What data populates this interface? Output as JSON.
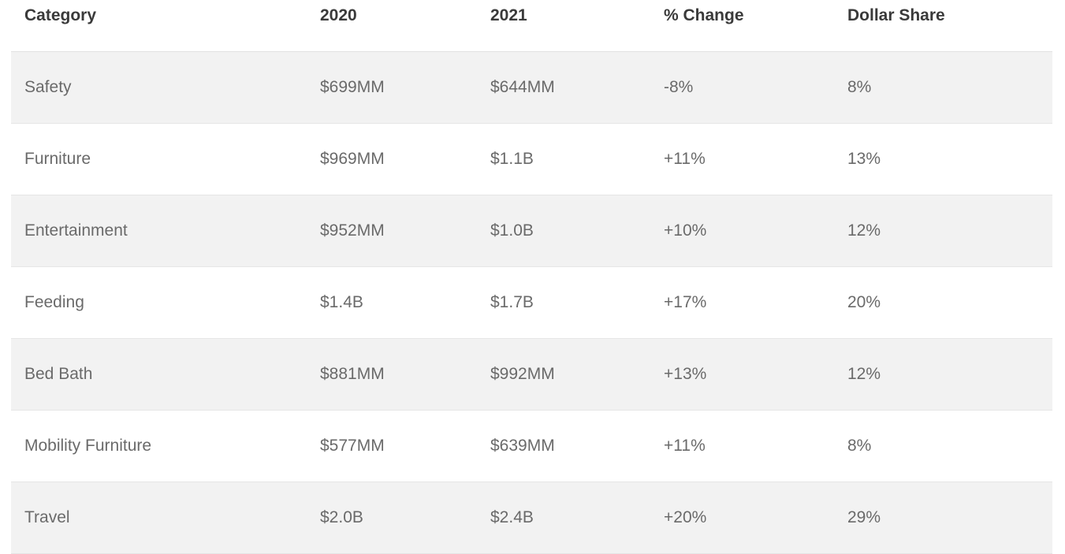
{
  "table": {
    "headers": [
      "Category",
      "2020",
      "2021",
      "% Change",
      "Dollar Share"
    ],
    "rows": [
      [
        "Safety",
        "$699MM",
        "$644MM",
        "-8%",
        "8%"
      ],
      [
        "Furniture",
        "$969MM",
        "$1.1B",
        "+11%",
        "13%"
      ],
      [
        "Entertainment",
        "$952MM",
        "$1.0B",
        "+10%",
        "12%"
      ],
      [
        "Feeding",
        "$1.4B",
        "$1.7B",
        "+17%",
        "20%"
      ],
      [
        "Bed Bath",
        "$881MM",
        "$992MM",
        "+13%",
        "12%"
      ],
      [
        "Mobility Furniture",
        "$577MM",
        "$639MM",
        "+11%",
        "8%"
      ],
      [
        "Travel",
        "$2.0B",
        "$2.4B",
        "+20%",
        "29%"
      ]
    ]
  }
}
